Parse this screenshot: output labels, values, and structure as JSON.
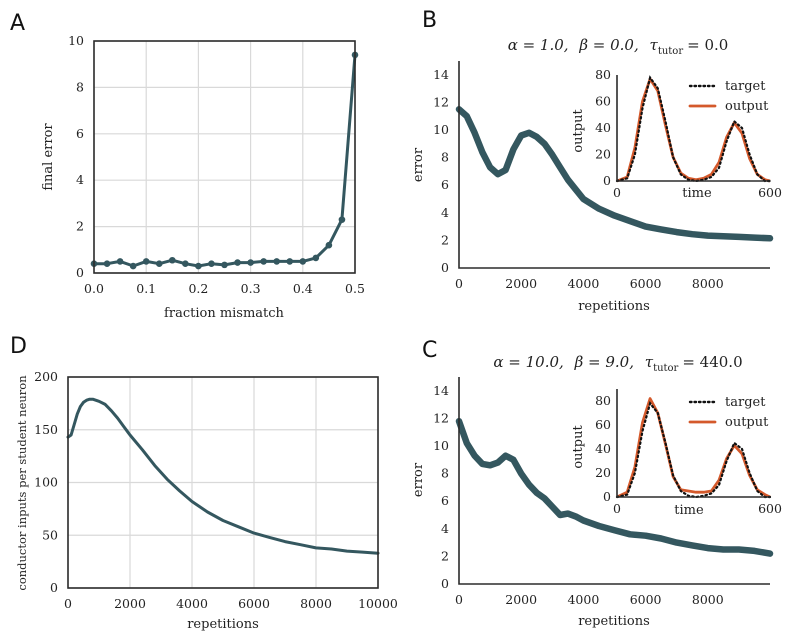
{
  "panels": {
    "A": {
      "letter": "A"
    },
    "B": {
      "letter": "B"
    },
    "C": {
      "letter": "C"
    },
    "D": {
      "letter": "D"
    }
  },
  "chart_data": [
    {
      "id": "A",
      "type": "line",
      "title": "",
      "xlabel": "fraction mismatch",
      "ylabel": "final error",
      "xlim": [
        0.0,
        0.5
      ],
      "ylim": [
        0,
        10
      ],
      "xticks": [
        "0.0",
        "0.1",
        "0.2",
        "0.3",
        "0.4",
        "0.5"
      ],
      "yticks": [
        "0",
        "2",
        "4",
        "6",
        "8",
        "10"
      ],
      "grid": true,
      "color": "#34575f",
      "markers": true,
      "x": [
        0.0,
        0.025,
        0.05,
        0.075,
        0.1,
        0.125,
        0.15,
        0.175,
        0.2,
        0.225,
        0.25,
        0.275,
        0.3,
        0.325,
        0.35,
        0.375,
        0.4,
        0.425,
        0.45,
        0.475,
        0.5
      ],
      "y": [
        0.4,
        0.4,
        0.5,
        0.3,
        0.5,
        0.4,
        0.55,
        0.4,
        0.3,
        0.4,
        0.35,
        0.45,
        0.45,
        0.5,
        0.5,
        0.5,
        0.5,
        0.65,
        1.2,
        2.3,
        9.4
      ]
    },
    {
      "id": "B",
      "type": "line",
      "title": "α = 1.0, β = 0.0, τ_tutor = 0.0",
      "title_parts": {
        "alpha": "α = 1.0,",
        "beta": "β = 0.0,",
        "tau": "τ",
        "tau_sub": "tutor",
        "tau_val": "= 0.0"
      },
      "xlabel": "repetitions",
      "ylabel": "error",
      "xlim": [
        0,
        10000
      ],
      "ylim": [
        0,
        15
      ],
      "xticks": [
        "0",
        "2000",
        "4000",
        "6000",
        "8000"
      ],
      "yticks": [
        "0",
        "2",
        "4",
        "6",
        "8",
        "10",
        "12",
        "14"
      ],
      "grid": false,
      "color": "#34575f",
      "x": [
        0,
        250,
        500,
        750,
        1000,
        1250,
        1500,
        1750,
        2000,
        2250,
        2500,
        2750,
        3000,
        3250,
        3500,
        3750,
        4000,
        4500,
        5000,
        5500,
        6000,
        6500,
        7000,
        7500,
        8000,
        8500,
        9000,
        9500,
        10000
      ],
      "y": [
        11.5,
        11,
        9.8,
        8.4,
        7.3,
        6.8,
        7.1,
        8.6,
        9.6,
        9.8,
        9.5,
        9.0,
        8.2,
        7.3,
        6.4,
        5.7,
        5.0,
        4.3,
        3.8,
        3.4,
        3.0,
        2.8,
        2.6,
        2.45,
        2.35,
        2.3,
        2.25,
        2.2,
        2.15
      ],
      "inset": {
        "xlabel": "time",
        "ylabel": "output",
        "xlim": [
          0,
          600
        ],
        "ylim": [
          0,
          80
        ],
        "xticks": [
          "0",
          "600"
        ],
        "yticks": [
          "0",
          "20",
          "40",
          "60",
          "80"
        ],
        "legend": [
          {
            "name": "target",
            "style": "dotted",
            "color": "#111111"
          },
          {
            "name": "output",
            "style": "solid",
            "color": "#d4592b"
          }
        ],
        "legend_loc": "top-right",
        "target_x": [
          0,
          40,
          70,
          100,
          130,
          160,
          190,
          220,
          250,
          280,
          310,
          340,
          370,
          400,
          430,
          460,
          490,
          520,
          550,
          580,
          600
        ],
        "target_y": [
          0,
          2,
          20,
          55,
          78,
          70,
          45,
          18,
          5,
          1,
          0,
          1,
          3,
          10,
          30,
          45,
          40,
          20,
          5,
          0,
          0
        ],
        "output_x": [
          0,
          40,
          70,
          100,
          130,
          160,
          190,
          220,
          250,
          280,
          310,
          340,
          370,
          400,
          430,
          460,
          490,
          520,
          550,
          580,
          600
        ],
        "output_y": [
          0,
          3,
          25,
          60,
          77,
          68,
          42,
          18,
          6,
          2,
          1,
          2,
          5,
          14,
          33,
          44,
          36,
          17,
          5,
          1,
          0
        ]
      }
    },
    {
      "id": "C",
      "type": "line",
      "title": "α = 10.0, β = 9.0, τ_tutor = 440.0",
      "title_parts": {
        "alpha": "α = 10.0,",
        "beta": "β = 9.0,",
        "tau": "τ",
        "tau_sub": "tutor",
        "tau_val": "= 440.0"
      },
      "xlabel": "repetitions",
      "ylabel": "error",
      "xlim": [
        0,
        10000
      ],
      "ylim": [
        0,
        15
      ],
      "xticks": [
        "0",
        "2000",
        "4000",
        "6000",
        "8000"
      ],
      "yticks": [
        "0",
        "2",
        "4",
        "6",
        "8",
        "10",
        "12",
        "14"
      ],
      "grid": false,
      "color": "#34575f",
      "x": [
        0,
        250,
        500,
        750,
        1000,
        1250,
        1500,
        1750,
        2000,
        2250,
        2500,
        2750,
        3000,
        3250,
        3500,
        3750,
        4000,
        4500,
        5000,
        5500,
        6000,
        6500,
        7000,
        7500,
        8000,
        8500,
        9000,
        9500,
        10000
      ],
      "y": [
        11.8,
        10.2,
        9.3,
        8.7,
        8.6,
        8.8,
        9.3,
        9.0,
        8.0,
        7.2,
        6.6,
        6.2,
        5.6,
        5.0,
        5.1,
        4.9,
        4.6,
        4.2,
        3.9,
        3.6,
        3.5,
        3.3,
        3.0,
        2.8,
        2.6,
        2.5,
        2.5,
        2.4,
        2.2
      ],
      "inset": {
        "xlabel": "time",
        "ylabel": "output",
        "xlim": [
          0,
          600
        ],
        "ylim": [
          0,
          90
        ],
        "xticks": [
          "0",
          "600"
        ],
        "yticks": [
          "0",
          "20",
          "40",
          "60",
          "80"
        ],
        "legend": [
          {
            "name": "target",
            "style": "dotted",
            "color": "#111111"
          },
          {
            "name": "output",
            "style": "solid",
            "color": "#d4592b"
          }
        ],
        "legend_loc": "top-right",
        "target_x": [
          0,
          40,
          70,
          100,
          130,
          160,
          190,
          220,
          250,
          280,
          310,
          340,
          370,
          400,
          430,
          460,
          490,
          520,
          550,
          580,
          600
        ],
        "target_y": [
          0,
          2,
          20,
          55,
          78,
          70,
          45,
          18,
          5,
          1,
          0,
          1,
          3,
          10,
          30,
          45,
          40,
          20,
          5,
          0,
          0
        ],
        "output_x": [
          0,
          40,
          70,
          100,
          130,
          160,
          190,
          220,
          250,
          280,
          310,
          340,
          370,
          400,
          430,
          460,
          490,
          520,
          550,
          580,
          600
        ],
        "output_y": [
          0,
          4,
          25,
          62,
          82,
          70,
          44,
          17,
          6,
          5,
          4,
          4,
          5,
          14,
          32,
          43,
          36,
          18,
          6,
          2,
          0
        ]
      }
    },
    {
      "id": "D",
      "type": "line",
      "title": "",
      "xlabel": "repetitions",
      "ylabel": "conductor inputs per student neuron",
      "xlim": [
        0,
        10000
      ],
      "ylim": [
        0,
        200
      ],
      "xticks": [
        "0",
        "2000",
        "4000",
        "6000",
        "8000",
        "10000"
      ],
      "yticks": [
        "0",
        "50",
        "100",
        "150",
        "200"
      ],
      "grid": true,
      "color": "#34575f",
      "x": [
        0,
        100,
        200,
        300,
        400,
        500,
        600,
        700,
        800,
        1000,
        1200,
        1400,
        1600,
        1800,
        2000,
        2400,
        2800,
        3200,
        3600,
        4000,
        4500,
        5000,
        5500,
        6000,
        6500,
        7000,
        7500,
        8000,
        8500,
        9000,
        9500,
        10000
      ],
      "y": [
        143,
        145,
        155,
        165,
        172,
        176,
        178,
        179,
        179,
        177,
        174,
        168,
        161,
        153,
        145,
        131,
        116,
        103,
        92,
        82,
        72,
        64,
        58,
        52,
        48,
        44,
        41,
        38,
        37,
        35,
        34,
        33
      ]
    }
  ]
}
